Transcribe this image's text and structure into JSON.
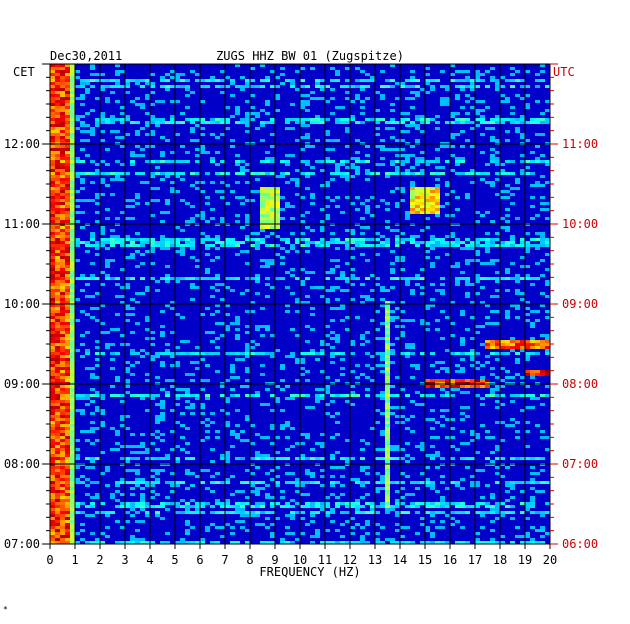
{
  "header": {
    "date": "Dec30,2011",
    "station": "ZUGS HHZ BW 01 (Zugspitze)",
    "left_zone": "CET",
    "right_zone": "UTC"
  },
  "footer": {
    "mark": "*"
  },
  "colors": {
    "background_spectrum": "#0000c8",
    "grid": "#000000",
    "utc_text": "#cc0000",
    "cet_text": "#000000"
  },
  "chart_data": {
    "type": "heatmap",
    "xlabel": "FREQUENCY (HZ)",
    "x_range": [
      0,
      20
    ],
    "x_ticks": [
      "0",
      "1",
      "2",
      "3",
      "4",
      "5",
      "6",
      "7",
      "8",
      "9",
      "10",
      "11",
      "12",
      "13",
      "14",
      "15",
      "16",
      "17",
      "18",
      "19",
      "20"
    ],
    "y_range_cet": [
      "07:00",
      "13:00"
    ],
    "y_ticks_cet": [
      "07:00",
      "08:00",
      "09:00",
      "10:00",
      "11:00",
      "12:00"
    ],
    "y_ticks_utc": [
      "06:00",
      "07:00",
      "08:00",
      "09:00",
      "10:00",
      "11:00"
    ],
    "colormap": "jet",
    "features": [
      {
        "freq_hz": [
          0,
          0.8
        ],
        "description": "persistent strong low-frequency energy",
        "level": 0.95
      },
      {
        "freq_hz": [
          13.5,
          13.7
        ],
        "time_cet": [
          "07:30",
          "10:00"
        ],
        "level": 0.6
      },
      {
        "freq_hz": [
          15.0,
          17.5
        ],
        "time_cet": [
          "09:00",
          "09:00"
        ],
        "level": 1.0
      },
      {
        "freq_hz": [
          17.5,
          20.0
        ],
        "time_cet": [
          "09:30",
          "09:30"
        ],
        "level": 0.9
      },
      {
        "freq_hz": [
          19.0,
          20.0
        ],
        "time_cet": [
          "09:08",
          "09:08"
        ],
        "level": 1.0
      },
      {
        "freq_hz": [
          8.5,
          9.2
        ],
        "time_cet": [
          "11:00",
          "11:25"
        ],
        "level": 0.65
      },
      {
        "freq_hz": [
          14.3,
          15.7
        ],
        "time_cet": [
          "11:10",
          "11:25"
        ],
        "level": 0.75
      }
    ]
  }
}
